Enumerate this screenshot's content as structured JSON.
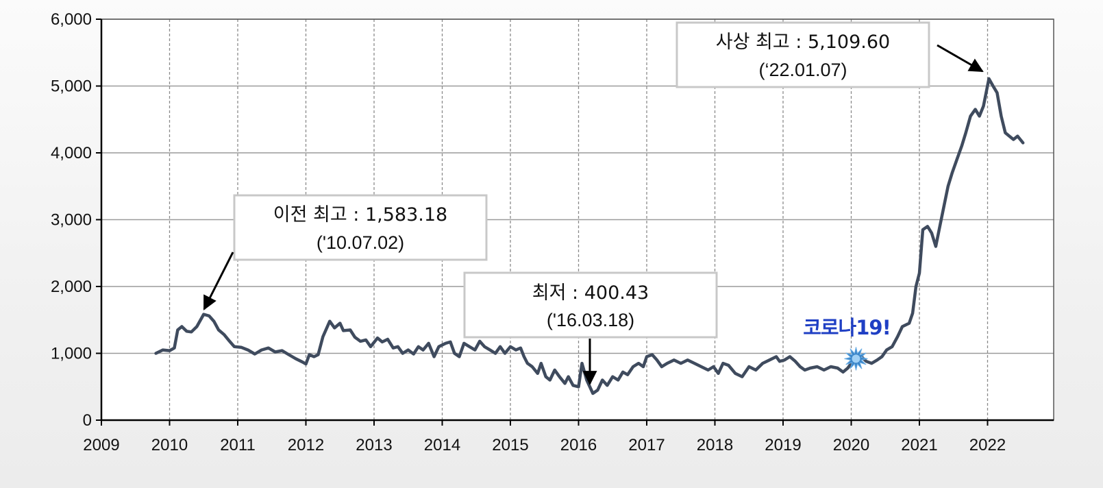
{
  "chart_data": {
    "type": "line",
    "title": "",
    "xlabel": "",
    "ylabel": "",
    "xlim": [
      2009,
      2023
    ],
    "ylim": [
      0,
      6000
    ],
    "grid": true,
    "x_ticks": [
      "2009",
      "2010",
      "2011",
      "2012",
      "2013",
      "2014",
      "2015",
      "2016",
      "2017",
      "2018",
      "2019",
      "2020",
      "2021",
      "2022"
    ],
    "y_ticks": [
      "0",
      "1,000",
      "2,000",
      "3,000",
      "4,000",
      "5,000",
      "6,000"
    ],
    "colors": {
      "line": "#3f4b5e",
      "grid": "#9a9a9a",
      "covid_marker": "#3b86c9",
      "covid_text": "#1f3fc4"
    },
    "series": [
      {
        "values": [
          [
            2009.8,
            1000
          ],
          [
            2009.9,
            1050
          ],
          [
            2010.0,
            1040
          ],
          [
            2010.07,
            1080
          ],
          [
            2010.12,
            1350
          ],
          [
            2010.18,
            1400
          ],
          [
            2010.25,
            1330
          ],
          [
            2010.32,
            1320
          ],
          [
            2010.4,
            1400
          ],
          [
            2010.5,
            1583.18
          ],
          [
            2010.58,
            1560
          ],
          [
            2010.65,
            1480
          ],
          [
            2010.72,
            1350
          ],
          [
            2010.8,
            1280
          ],
          [
            2010.88,
            1180
          ],
          [
            2010.95,
            1100
          ],
          [
            2011.05,
            1090
          ],
          [
            2011.15,
            1050
          ],
          [
            2011.25,
            990
          ],
          [
            2011.35,
            1050
          ],
          [
            2011.45,
            1080
          ],
          [
            2011.55,
            1020
          ],
          [
            2011.65,
            1040
          ],
          [
            2011.75,
            980
          ],
          [
            2011.85,
            920
          ],
          [
            2011.95,
            870
          ],
          [
            2012.0,
            840
          ],
          [
            2012.05,
            980
          ],
          [
            2012.12,
            950
          ],
          [
            2012.18,
            980
          ],
          [
            2012.25,
            1250
          ],
          [
            2012.35,
            1480
          ],
          [
            2012.42,
            1380
          ],
          [
            2012.5,
            1450
          ],
          [
            2012.55,
            1340
          ],
          [
            2012.65,
            1350
          ],
          [
            2012.72,
            1240
          ],
          [
            2012.8,
            1180
          ],
          [
            2012.88,
            1200
          ],
          [
            2012.95,
            1100
          ],
          [
            2013.05,
            1230
          ],
          [
            2013.12,
            1170
          ],
          [
            2013.2,
            1210
          ],
          [
            2013.28,
            1080
          ],
          [
            2013.35,
            1100
          ],
          [
            2013.42,
            1000
          ],
          [
            2013.5,
            1050
          ],
          [
            2013.58,
            990
          ],
          [
            2013.65,
            1100
          ],
          [
            2013.72,
            1050
          ],
          [
            2013.8,
            1150
          ],
          [
            2013.88,
            950
          ],
          [
            2013.95,
            1100
          ],
          [
            2014.05,
            1150
          ],
          [
            2014.12,
            1170
          ],
          [
            2014.18,
            1000
          ],
          [
            2014.25,
            950
          ],
          [
            2014.32,
            1150
          ],
          [
            2014.4,
            1100
          ],
          [
            2014.48,
            1050
          ],
          [
            2014.55,
            1180
          ],
          [
            2014.62,
            1100
          ],
          [
            2014.7,
            1050
          ],
          [
            2014.78,
            1000
          ],
          [
            2014.85,
            1100
          ],
          [
            2014.92,
            1000
          ],
          [
            2015.0,
            1100
          ],
          [
            2015.08,
            1050
          ],
          [
            2015.15,
            1080
          ],
          [
            2015.2,
            950
          ],
          [
            2015.25,
            850
          ],
          [
            2015.32,
            800
          ],
          [
            2015.4,
            700
          ],
          [
            2015.45,
            850
          ],
          [
            2015.52,
            650
          ],
          [
            2015.58,
            600
          ],
          [
            2015.65,
            750
          ],
          [
            2015.72,
            650
          ],
          [
            2015.8,
            550
          ],
          [
            2015.85,
            650
          ],
          [
            2015.92,
            520
          ],
          [
            2016.0,
            500
          ],
          [
            2016.05,
            850
          ],
          [
            2016.12,
            600
          ],
          [
            2016.21,
            400.43
          ],
          [
            2016.28,
            450
          ],
          [
            2016.35,
            600
          ],
          [
            2016.42,
            520
          ],
          [
            2016.5,
            650
          ],
          [
            2016.58,
            600
          ],
          [
            2016.65,
            720
          ],
          [
            2016.72,
            680
          ],
          [
            2016.8,
            800
          ],
          [
            2016.88,
            850
          ],
          [
            2016.95,
            800
          ],
          [
            2017.0,
            950
          ],
          [
            2017.08,
            980
          ],
          [
            2017.15,
            900
          ],
          [
            2017.22,
            800
          ],
          [
            2017.3,
            850
          ],
          [
            2017.4,
            900
          ],
          [
            2017.5,
            850
          ],
          [
            2017.6,
            900
          ],
          [
            2017.7,
            850
          ],
          [
            2017.8,
            800
          ],
          [
            2017.9,
            750
          ],
          [
            2017.98,
            800
          ],
          [
            2018.05,
            700
          ],
          [
            2018.12,
            850
          ],
          [
            2018.2,
            820
          ],
          [
            2018.3,
            700
          ],
          [
            2018.4,
            650
          ],
          [
            2018.5,
            800
          ],
          [
            2018.6,
            750
          ],
          [
            2018.7,
            850
          ],
          [
            2018.8,
            900
          ],
          [
            2018.9,
            950
          ],
          [
            2018.95,
            880
          ],
          [
            2019.02,
            900
          ],
          [
            2019.1,
            950
          ],
          [
            2019.18,
            880
          ],
          [
            2019.25,
            800
          ],
          [
            2019.32,
            750
          ],
          [
            2019.4,
            780
          ],
          [
            2019.5,
            800
          ],
          [
            2019.6,
            750
          ],
          [
            2019.7,
            800
          ],
          [
            2019.8,
            780
          ],
          [
            2019.88,
            720
          ],
          [
            2019.95,
            780
          ],
          [
            2020.0,
            850
          ],
          [
            2020.08,
            900
          ],
          [
            2020.15,
            950
          ],
          [
            2020.22,
            880
          ],
          [
            2020.3,
            850
          ],
          [
            2020.38,
            900
          ],
          [
            2020.45,
            950
          ],
          [
            2020.52,
            1050
          ],
          [
            2020.6,
            1100
          ],
          [
            2020.68,
            1250
          ],
          [
            2020.75,
            1400
          ],
          [
            2020.85,
            1450
          ],
          [
            2020.9,
            1600
          ],
          [
            2020.95,
            2000
          ],
          [
            2021.0,
            2200
          ],
          [
            2021.05,
            2850
          ],
          [
            2021.12,
            2900
          ],
          [
            2021.18,
            2800
          ],
          [
            2021.24,
            2600
          ],
          [
            2021.3,
            2900
          ],
          [
            2021.36,
            3200
          ],
          [
            2021.42,
            3500
          ],
          [
            2021.48,
            3700
          ],
          [
            2021.55,
            3900
          ],
          [
            2021.62,
            4100
          ],
          [
            2021.68,
            4300
          ],
          [
            2021.75,
            4550
          ],
          [
            2021.82,
            4650
          ],
          [
            2021.88,
            4550
          ],
          [
            2021.94,
            4700
          ],
          [
            2022.02,
            5109.6
          ],
          [
            2022.08,
            5000
          ],
          [
            2022.14,
            4900
          ],
          [
            2022.2,
            4550
          ],
          [
            2022.26,
            4300
          ],
          [
            2022.32,
            4250
          ],
          [
            2022.38,
            4200
          ],
          [
            2022.44,
            4250
          ],
          [
            2022.52,
            4150
          ]
        ]
      }
    ],
    "annotations": [
      {
        "line1": "이전 최고 : 1,583.18",
        "line2": "('10.07.02)",
        "point": [
          2010.5,
          1583.18
        ]
      },
      {
        "line1": "최저 : 400.43",
        "line2": "('16.03.18)",
        "point": [
          2016.21,
          400.43
        ]
      },
      {
        "line1": "사상 최고 : 5,109.60",
        "line2": "(‘22.01.07)",
        "point": [
          2022.02,
          5109.6
        ]
      },
      {
        "label": "코로나19!",
        "point": [
          2020.07,
          950
        ]
      }
    ]
  }
}
